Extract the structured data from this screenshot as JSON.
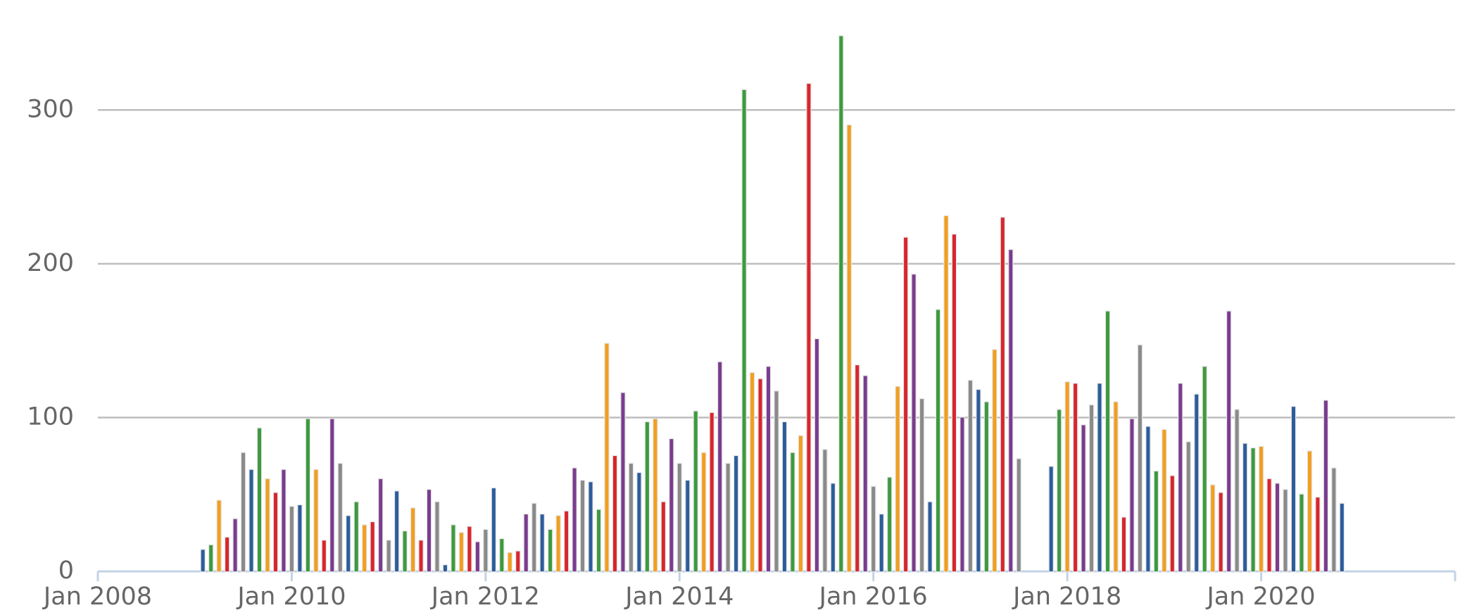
{
  "chart_data": {
    "type": "bar",
    "x": [
      "2009-02",
      "2009-03",
      "2009-04",
      "2009-05",
      "2009-06",
      "2009-07",
      "2009-08",
      "2009-09",
      "2009-10",
      "2009-11",
      "2009-12",
      "2010-01",
      "2010-02",
      "2010-03",
      "2010-04",
      "2010-05",
      "2010-06",
      "2010-07",
      "2010-08",
      "2010-09",
      "2010-10",
      "2010-11",
      "2010-12",
      "2011-01",
      "2011-02",
      "2011-03",
      "2011-04",
      "2011-05",
      "2011-06",
      "2011-07",
      "2011-08",
      "2011-09",
      "2011-10",
      "2011-11",
      "2011-12",
      "2012-01",
      "2012-02",
      "2012-03",
      "2012-04",
      "2012-05",
      "2012-06",
      "2012-07",
      "2012-08",
      "2012-09",
      "2012-10",
      "2012-11",
      "2012-12",
      "2013-01",
      "2013-02",
      "2013-03",
      "2013-04",
      "2013-05",
      "2013-06",
      "2013-07",
      "2013-08",
      "2013-09",
      "2013-10",
      "2013-11",
      "2013-12",
      "2014-01",
      "2014-02",
      "2014-03",
      "2014-04",
      "2014-05",
      "2014-06",
      "2014-07",
      "2014-08",
      "2014-09",
      "2014-10",
      "2014-11",
      "2014-12",
      "2015-01",
      "2015-02",
      "2015-03",
      "2015-04",
      "2015-05",
      "2015-06",
      "2015-07",
      "2015-08",
      "2015-09",
      "2015-10",
      "2015-11",
      "2015-12",
      "2016-01",
      "2016-02",
      "2016-03",
      "2016-04",
      "2016-05",
      "2016-06",
      "2016-07",
      "2016-08",
      "2016-09",
      "2016-10",
      "2016-11",
      "2016-12",
      "2017-01",
      "2017-02",
      "2017-03",
      "2017-04",
      "2017-05",
      "2017-06",
      "2017-07",
      "2017-11",
      "2017-12",
      "2018-01",
      "2018-02",
      "2018-03",
      "2018-04",
      "2018-05",
      "2018-06",
      "2018-07",
      "2018-08",
      "2018-09",
      "2018-10",
      "2018-11",
      "2018-12",
      "2019-01",
      "2019-02",
      "2019-03",
      "2019-04",
      "2019-05",
      "2019-06",
      "2019-07",
      "2019-08",
      "2019-09",
      "2019-10",
      "2019-11",
      "2019-12",
      "2020-01",
      "2020-02",
      "2020-03",
      "2020-04",
      "2020-05",
      "2020-06",
      "2020-07",
      "2020-08",
      "2020-09",
      "2020-10",
      "2020-11"
    ],
    "values": [
      14,
      17,
      46,
      22,
      34,
      77,
      66,
      93,
      60,
      51,
      66,
      42,
      43,
      99,
      66,
      20,
      99,
      70,
      36,
      45,
      30,
      32,
      60,
      20,
      52,
      26,
      41,
      20,
      53,
      45,
      4,
      30,
      25,
      29,
      19,
      27,
      54,
      21,
      12,
      13,
      37,
      44,
      37,
      27,
      36,
      39,
      67,
      59,
      58,
      40,
      148,
      75,
      116,
      70,
      64,
      97,
      99,
      45,
      86,
      70,
      59,
      104,
      77,
      103,
      136,
      70,
      75,
      313,
      129,
      125,
      133,
      117,
      97,
      77,
      88,
      317,
      151,
      79,
      57,
      348,
      290,
      134,
      127,
      55,
      37,
      61,
      120,
      217,
      193,
      112,
      45,
      170,
      231,
      219,
      100,
      124,
      118,
      110,
      144,
      230,
      209,
      73,
      68,
      105,
      123,
      122,
      95,
      108,
      122,
      169,
      110,
      35,
      99,
      147,
      94,
      65,
      92,
      62,
      122,
      84,
      115,
      133,
      56,
      51,
      169,
      105,
      83,
      80,
      81,
      60,
      57,
      53,
      107,
      50,
      78,
      48,
      111,
      67,
      44
    ],
    "colors": [
      "#2c5d9b",
      "#3d9a3e",
      "#f29e1f",
      "#d8262c",
      "#7a3c8e",
      "#8a8a8a"
    ],
    "xlim": [
      "2008-01",
      "2022-01"
    ],
    "xticks": [
      {
        "value": "2008-01",
        "label": "Jan 2008"
      },
      {
        "value": "2010-01",
        "label": "Jan 2010"
      },
      {
        "value": "2012-01",
        "label": "Jan 2012"
      },
      {
        "value": "2014-01",
        "label": "Jan 2014"
      },
      {
        "value": "2016-01",
        "label": "Jan 2016"
      },
      {
        "value": "2018-01",
        "label": "Jan 2018"
      },
      {
        "value": "2020-01",
        "label": "Jan 2020"
      }
    ],
    "ylim": [
      0,
      350
    ],
    "yticks": [
      0,
      100,
      200,
      300
    ],
    "grid": true
  }
}
